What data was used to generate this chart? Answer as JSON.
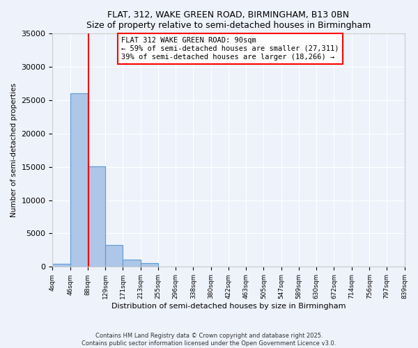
{
  "title1": "FLAT, 312, WAKE GREEN ROAD, BIRMINGHAM, B13 0BN",
  "title2": "Size of property relative to semi-detached houses in Birmingham",
  "xlabel": "Distribution of semi-detached houses by size in Birmingham",
  "ylabel": "Number of semi-detached properties",
  "annotation_title": "FLAT 312 WAKE GREEN ROAD: 90sqm",
  "annotation_line1": "← 59% of semi-detached houses are smaller (27,311)",
  "annotation_line2": "39% of semi-detached houses are larger (18,266) →",
  "property_size": 90,
  "bin_edges": [
    4,
    46,
    88,
    129,
    171,
    213,
    255,
    296,
    338,
    380,
    422,
    463,
    505,
    547,
    589,
    630,
    672,
    714,
    756,
    797,
    839
  ],
  "bin_counts": [
    500,
    26100,
    15100,
    3300,
    1100,
    600,
    0,
    0,
    0,
    0,
    0,
    0,
    0,
    0,
    0,
    0,
    0,
    0,
    0,
    0
  ],
  "bar_color": "#aec6e8",
  "bar_edge_color": "#5b9bd5",
  "vline_color": "red",
  "vline_x": 90,
  "background_color": "#eef2fb",
  "footer1": "Contains HM Land Registry data © Crown copyright and database right 2025.",
  "footer2": "Contains public sector information licensed under the Open Government Licence v3.0.",
  "ylim": [
    0,
    35000
  ],
  "yticks": [
    0,
    5000,
    10000,
    15000,
    20000,
    25000,
    30000,
    35000
  ]
}
